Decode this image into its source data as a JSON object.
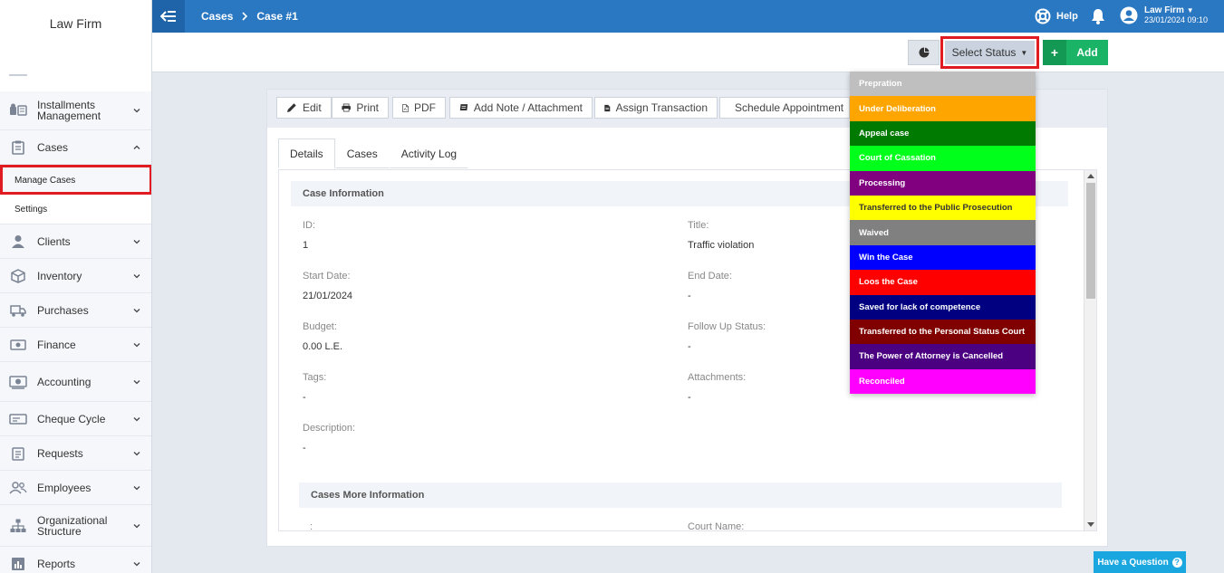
{
  "brand": "Law Firm",
  "topbar": {
    "breadcrumb": [
      "Cases",
      "Case #1"
    ],
    "help": "Help",
    "user_name": "Law Firm",
    "user_datetime": "23/01/2024 09:10"
  },
  "sidebar": {
    "items": [
      {
        "label": "Installments Management",
        "icon": "installments-icon"
      },
      {
        "label": "Cases",
        "icon": "cases-icon",
        "expanded": true
      },
      {
        "label": "Clients",
        "icon": "clients-icon"
      },
      {
        "label": "Inventory",
        "icon": "inventory-icon"
      },
      {
        "label": "Purchases",
        "icon": "purchases-icon"
      },
      {
        "label": "Finance",
        "icon": "finance-icon"
      },
      {
        "label": "Accounting",
        "icon": "accounting-icon"
      },
      {
        "label": "Cheque Cycle",
        "icon": "cheque-icon"
      },
      {
        "label": "Requests",
        "icon": "requests-icon"
      },
      {
        "label": "Employees",
        "icon": "employees-icon"
      },
      {
        "label": "Organizational Structure",
        "icon": "org-structure-icon"
      },
      {
        "label": "Reports",
        "icon": "reports-icon"
      }
    ],
    "subitems": [
      "Manage Cases",
      "Settings"
    ]
  },
  "actions": {
    "select_status": "Select Status",
    "add": "Add"
  },
  "toolbar": [
    "Edit",
    "Print",
    "PDF",
    "Add Note / Attachment",
    "Assign Transaction",
    "Schedule Appointment"
  ],
  "tabs": [
    "Details",
    "Cases",
    "Activity Log"
  ],
  "case_info": {
    "heading": "Case Information",
    "id_label": "ID:",
    "id_value": "1",
    "title_label": "Title:",
    "title_value": "Traffic violation",
    "start_label": "Start Date:",
    "start_value": "21/01/2024",
    "end_label": "End Date:",
    "end_value": "-",
    "budget_label": "Budget:",
    "budget_value": "0.00 L.E.",
    "follow_label": "Follow Up Status:",
    "follow_value": "-",
    "tags_label": "Tags:",
    "tags_value": "-",
    "attach_label": "Attachments:",
    "attach_value": "-",
    "desc_label": "Description:",
    "desc_value": "-"
  },
  "more_info": {
    "heading": "Cases More Information",
    "left_label": ":",
    "court_label": "Court Name:"
  },
  "status_options": [
    {
      "label": "Prepration",
      "bg": "#bfbfbf",
      "fg": "#ffffff"
    },
    {
      "label": "Under Deliberation",
      "bg": "#ffa500",
      "fg": "#ffffff"
    },
    {
      "label": "Appeal case",
      "bg": "#007a00",
      "fg": "#ffffff"
    },
    {
      "label": "Court of Cassation",
      "bg": "#00ff1a",
      "fg": "#ffffff"
    },
    {
      "label": "Processing",
      "bg": "#800080",
      "fg": "#ffffff"
    },
    {
      "label": "Transferred to the Public Prosecution",
      "bg": "#ffff00",
      "fg": "#333333"
    },
    {
      "label": "Waived",
      "bg": "#808080",
      "fg": "#ffffff"
    },
    {
      "label": "Win the Case",
      "bg": "#0000ff",
      "fg": "#ffffff"
    },
    {
      "label": "Loos the Case",
      "bg": "#ff0000",
      "fg": "#ffffff"
    },
    {
      "label": "Saved for lack of competence",
      "bg": "#000080",
      "fg": "#ffffff"
    },
    {
      "label": "Transferred to the Personal Status Court",
      "bg": "#800000",
      "fg": "#ffffff"
    },
    {
      "label": "The Power of Attorney is Cancelled",
      "bg": "#4b0082",
      "fg": "#ffffff"
    },
    {
      "label": "Reconciled",
      "bg": "#ff00ff",
      "fg": "#ffffff"
    }
  ],
  "question": "Have a Question"
}
